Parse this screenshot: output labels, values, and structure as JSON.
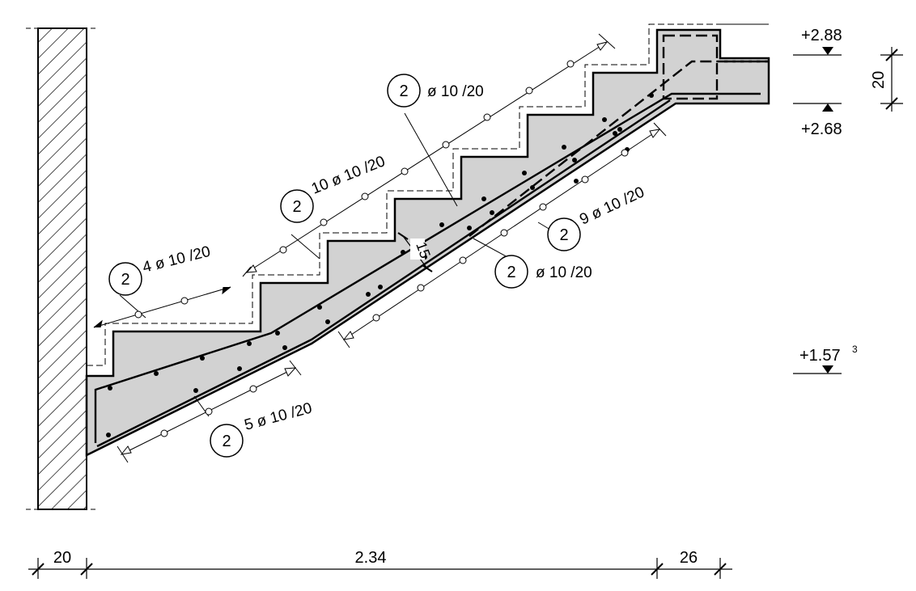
{
  "levels": {
    "top": "+2.88",
    "landing": "+2.68",
    "mid_base": "+1.57",
    "mid_sup": "3",
    "slab_thk": "20"
  },
  "dims": {
    "wall": "20",
    "run": "2.34",
    "landing": "26"
  },
  "thickness": "15",
  "bars": {
    "mark": "2",
    "b1": "4 ø 10 /20",
    "b2": "10 ø 10 /20",
    "b3": "ø 10 /20",
    "b4": "9 ø 10 /20",
    "b5": "ø 10 /20",
    "b6": "5 ø 10 /20"
  }
}
